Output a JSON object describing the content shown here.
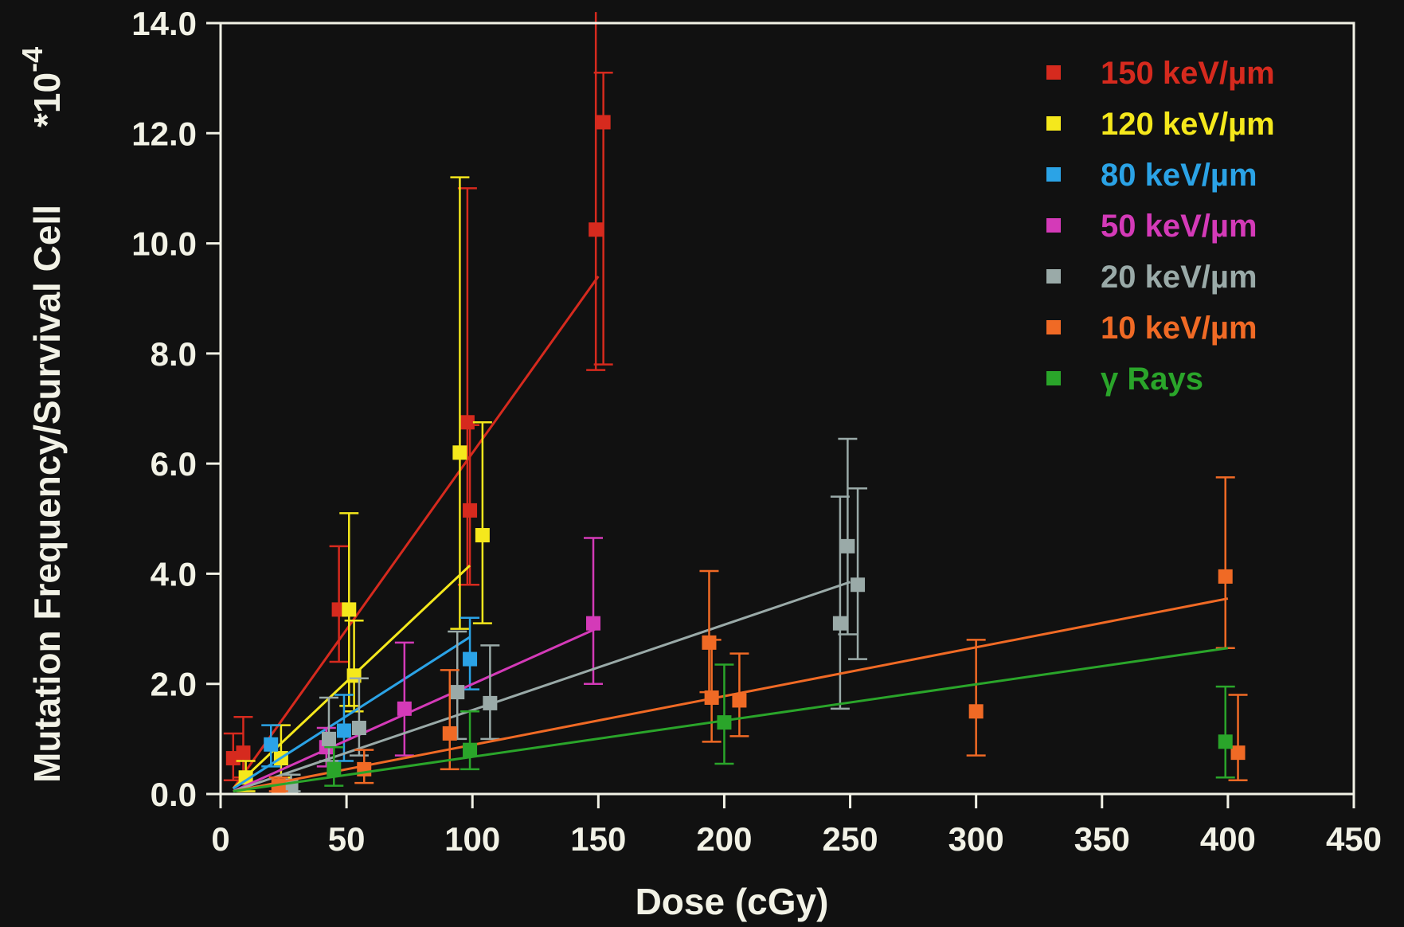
{
  "chart_data": {
    "type": "scatter",
    "xlabel": "Dose (cGy)",
    "ylabel": "Mutation Frequency/Survival Cell",
    "y_multiplier": "*10",
    "y_multiplier_exp": "-4",
    "xlim": [
      0,
      450
    ],
    "ylim": [
      0,
      14
    ],
    "x_ticks": [
      0,
      50,
      100,
      150,
      200,
      250,
      300,
      350,
      400,
      450
    ],
    "y_ticks": [
      0,
      2,
      4,
      6,
      8,
      10,
      12,
      14
    ],
    "x_tick_labels": [
      "0",
      "50",
      "100",
      "150",
      "200",
      "250",
      "300",
      "350",
      "400",
      "450"
    ],
    "y_tick_labels": [
      "0.0",
      "2.0",
      "4.0",
      "6.0",
      "8.0",
      "10.0",
      "12.0",
      "14.0"
    ],
    "grid": false,
    "legend_position": "top-right",
    "background": "#111111",
    "axis_color": "#f2f2e6",
    "series": [
      {
        "name": "150 keV/µm",
        "color": "#d62a1e",
        "fit": [
          [
            5,
            0.1
          ],
          [
            150,
            9.4
          ]
        ],
        "points": [
          {
            "x": 5,
            "y": 0.65,
            "lo": 0.25,
            "hi": 1.1
          },
          {
            "x": 9,
            "y": 0.75,
            "lo": 0.3,
            "hi": 1.4
          },
          {
            "x": 47,
            "y": 3.35,
            "lo": 2.4,
            "hi": 4.5
          },
          {
            "x": 98,
            "y": 6.75,
            "lo": 3.8,
            "hi": 11.0
          },
          {
            "x": 99,
            "y": 5.15,
            "lo": 3.8,
            "hi": 6.7
          },
          {
            "x": 149,
            "y": 10.25,
            "lo": 7.7,
            "hi": 15.0
          },
          {
            "x": 152,
            "y": 12.2,
            "lo": 7.8,
            "hi": 13.1
          }
        ]
      },
      {
        "name": "120 keV/µm",
        "color": "#f5e81c",
        "fit": [
          [
            5,
            0.1
          ],
          [
            99,
            4.15
          ]
        ],
        "points": [
          {
            "x": 10,
            "y": 0.3,
            "lo": 0.05,
            "hi": 0.6
          },
          {
            "x": 24,
            "y": 0.65,
            "lo": 0.3,
            "hi": 1.25
          },
          {
            "x": 51,
            "y": 3.35,
            "lo": 1.6,
            "hi": 5.1
          },
          {
            "x": 53,
            "y": 2.15,
            "lo": 1.5,
            "hi": 3.15
          },
          {
            "x": 95,
            "y": 6.2,
            "lo": 3.0,
            "hi": 11.2
          },
          {
            "x": 104,
            "y": 4.7,
            "lo": 3.1,
            "hi": 6.75
          }
        ]
      },
      {
        "name": "80 keV/µm",
        "color": "#2ba3e6",
        "fit": [
          [
            5,
            0.1
          ],
          [
            99,
            2.85
          ]
        ],
        "points": [
          {
            "x": 20,
            "y": 0.9,
            "lo": 0.5,
            "hi": 1.25
          },
          {
            "x": 49,
            "y": 1.15,
            "lo": 0.6,
            "hi": 1.8
          },
          {
            "x": 99,
            "y": 2.45,
            "lo": 1.9,
            "hi": 3.2
          }
        ]
      },
      {
        "name": "50 keV/µm",
        "color": "#d43ab8",
        "fit": [
          [
            5,
            0.05
          ],
          [
            149,
            3.0
          ]
        ],
        "points": [
          {
            "x": 42,
            "y": 0.85,
            "lo": 0.5,
            "hi": 1.2
          },
          {
            "x": 73,
            "y": 1.55,
            "lo": 0.7,
            "hi": 2.75
          },
          {
            "x": 148,
            "y": 3.1,
            "lo": 2.0,
            "hi": 4.65
          }
        ]
      },
      {
        "name": "20 keV/µm",
        "color": "#9aaaa8",
        "fit": [
          [
            5,
            0.05
          ],
          [
            250,
            3.85
          ]
        ],
        "points": [
          {
            "x": 28,
            "y": 0.15,
            "lo": 0.05,
            "hi": 0.35
          },
          {
            "x": 43,
            "y": 1.0,
            "lo": 0.6,
            "hi": 1.75
          },
          {
            "x": 55,
            "y": 1.2,
            "lo": 0.7,
            "hi": 2.1
          },
          {
            "x": 94,
            "y": 1.85,
            "lo": 1.0,
            "hi": 2.95
          },
          {
            "x": 107,
            "y": 1.65,
            "lo": 1.0,
            "hi": 2.7
          },
          {
            "x": 246,
            "y": 3.1,
            "lo": 1.55,
            "hi": 5.4
          },
          {
            "x": 249,
            "y": 4.5,
            "lo": 2.9,
            "hi": 6.45
          },
          {
            "x": 253,
            "y": 3.8,
            "lo": 2.45,
            "hi": 5.55
          }
        ]
      },
      {
        "name": "10 keV/µm",
        "color": "#f06a25",
        "fit": [
          [
            5,
            0.05
          ],
          [
            400,
            3.55
          ]
        ],
        "points": [
          {
            "x": 23,
            "y": 0.15,
            "lo": 0.05,
            "hi": 0.3
          },
          {
            "x": 57,
            "y": 0.45,
            "lo": 0.2,
            "hi": 0.8
          },
          {
            "x": 91,
            "y": 1.1,
            "lo": 0.45,
            "hi": 2.25
          },
          {
            "x": 194,
            "y": 2.75,
            "lo": 1.85,
            "hi": 4.05
          },
          {
            "x": 195,
            "y": 1.75,
            "lo": 0.95,
            "hi": 2.8
          },
          {
            "x": 206,
            "y": 1.7,
            "lo": 1.05,
            "hi": 2.55
          },
          {
            "x": 300,
            "y": 1.5,
            "lo": 0.7,
            "hi": 2.8
          },
          {
            "x": 399,
            "y": 3.95,
            "lo": 2.65,
            "hi": 5.75
          },
          {
            "x": 404,
            "y": 0.75,
            "lo": 0.25,
            "hi": 1.8
          }
        ]
      },
      {
        "name": "γ Rays",
        "color": "#2aa52a",
        "fit": [
          [
            5,
            0.05
          ],
          [
            400,
            2.65
          ]
        ],
        "points": [
          {
            "x": 45,
            "y": 0.45,
            "lo": 0.15,
            "hi": 0.85
          },
          {
            "x": 99,
            "y": 0.8,
            "lo": 0.45,
            "hi": 1.5
          },
          {
            "x": 200,
            "y": 1.3,
            "lo": 0.55,
            "hi": 2.35
          },
          {
            "x": 399,
            "y": 0.95,
            "lo": 0.3,
            "hi": 1.95
          }
        ]
      }
    ]
  }
}
